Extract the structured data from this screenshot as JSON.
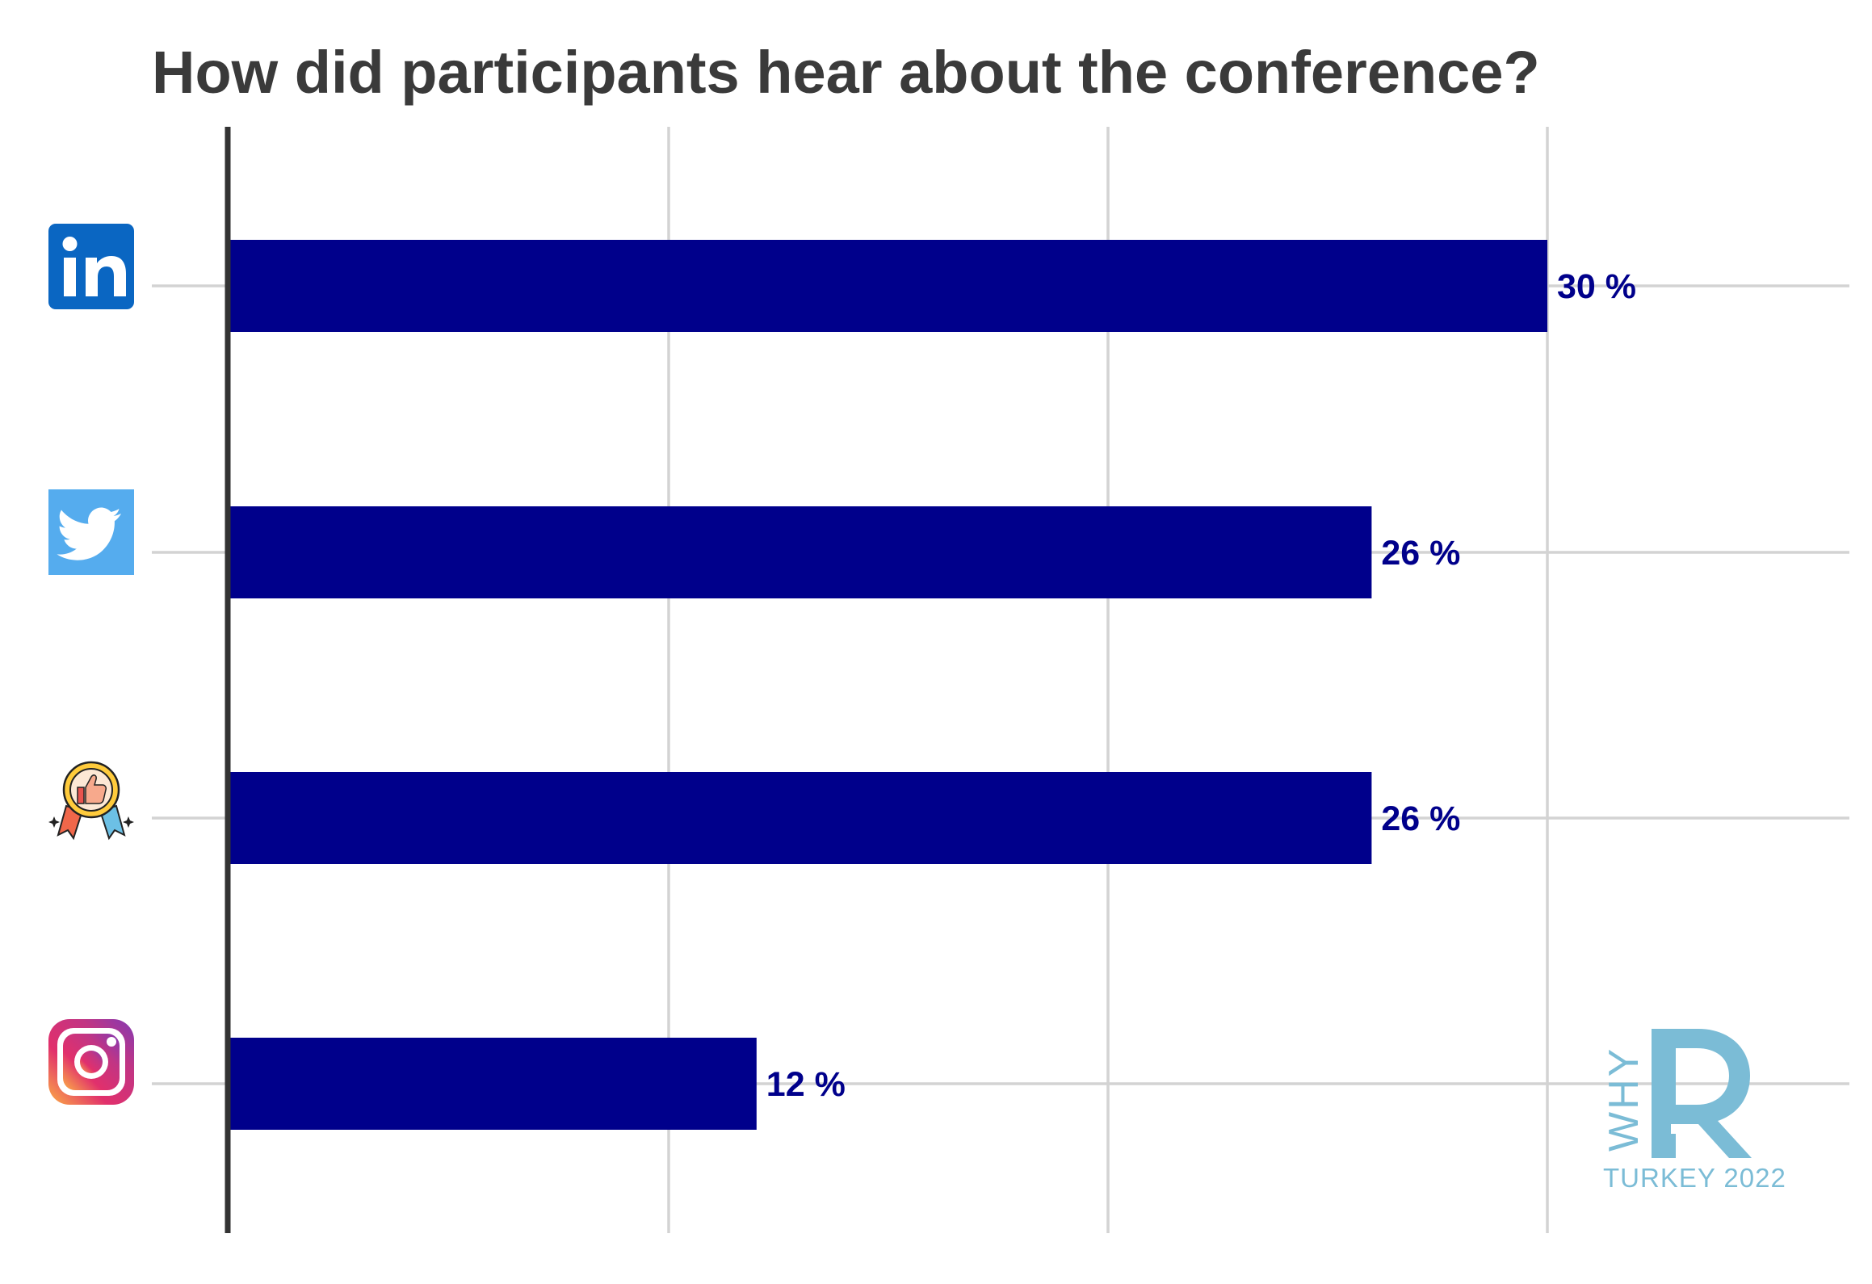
{
  "chart_data": {
    "type": "bar",
    "orientation": "horizontal",
    "title": "How did participants hear about the conference?",
    "categories": [
      "linkedin-icon",
      "twitter-icon",
      "recommendation-badge-icon",
      "instagram-icon"
    ],
    "values": [
      30,
      26,
      26,
      12
    ],
    "value_labels": [
      "30 %",
      "26 %",
      "26 %",
      "12 %"
    ],
    "xlim": [
      0,
      30
    ],
    "xticks": [
      10,
      20,
      30
    ],
    "grid": true,
    "bar_color": "#00008b",
    "label_color": "#00008b"
  },
  "watermark": {
    "vertical_text": "WHY",
    "big_letter": "R",
    "caption": "TURKEY 2022",
    "color": "#7bbcd6"
  },
  "colors": {
    "linkedin": "#0a66c2",
    "twitter": "#55acee",
    "grid": "#d3d3d3",
    "axis": "#333333",
    "title": "#3a3a3a"
  }
}
